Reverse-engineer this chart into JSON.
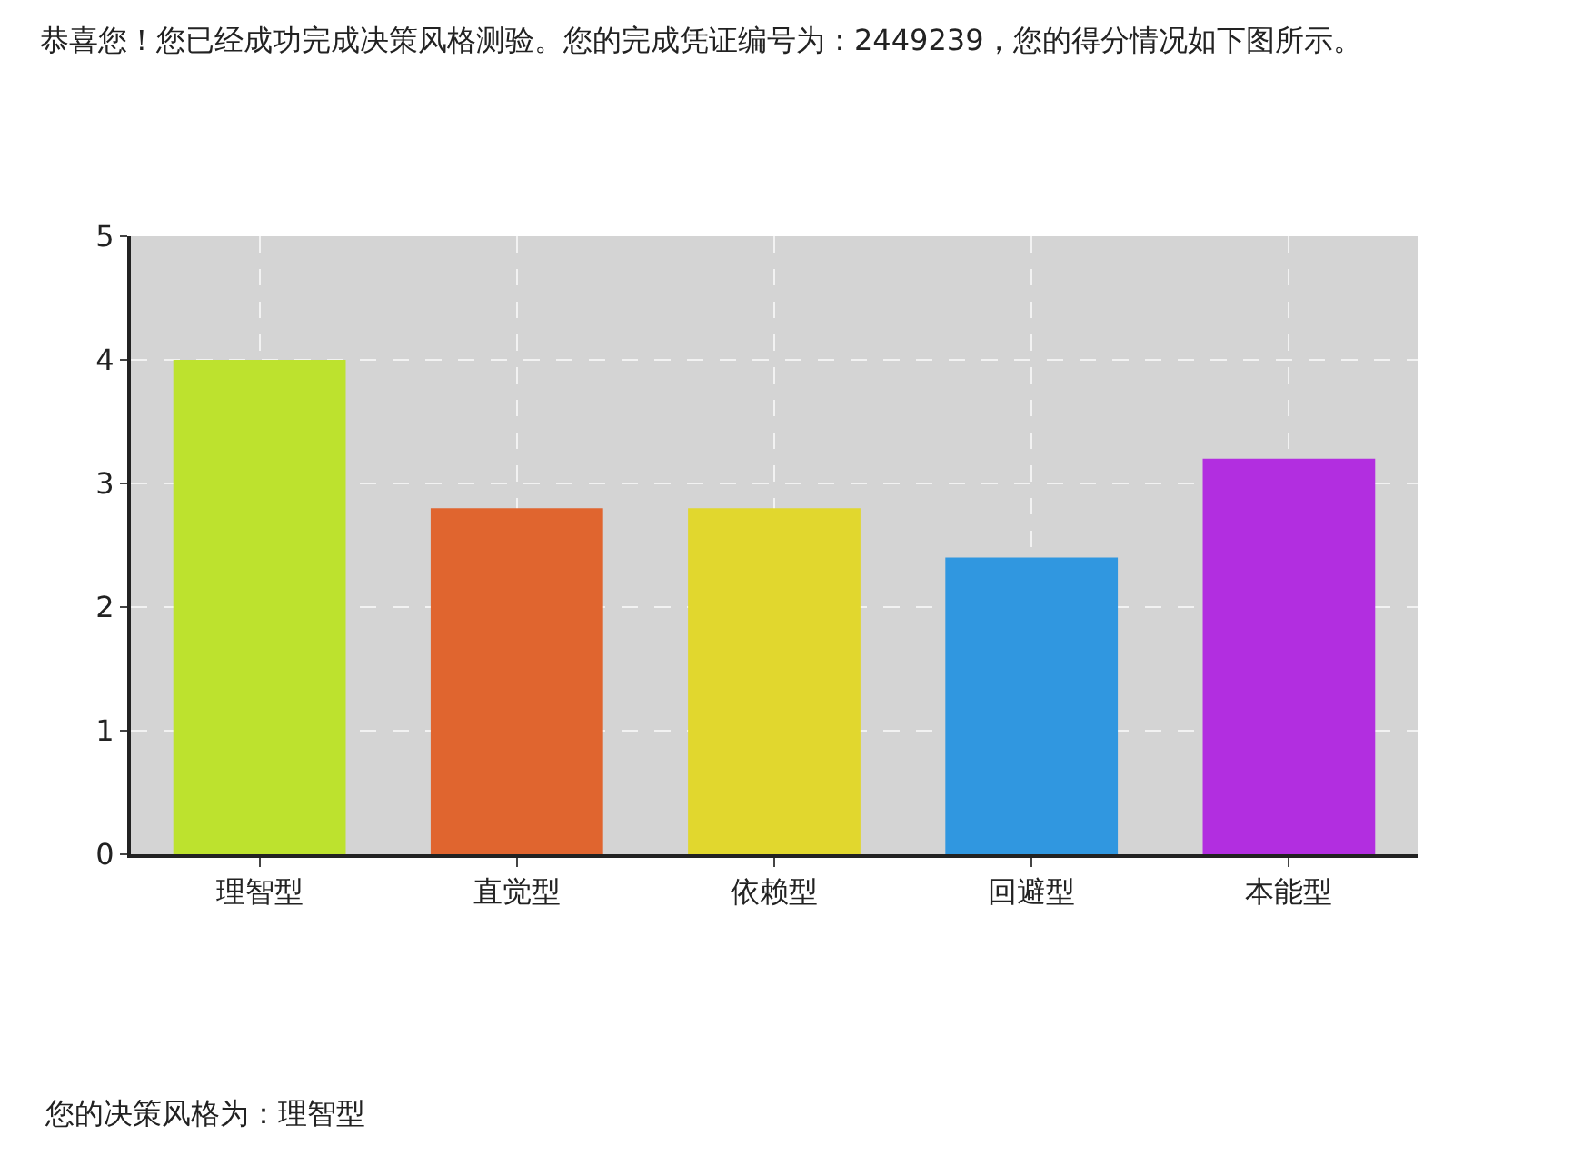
{
  "chart_data": {
    "type": "bar",
    "title": "恭喜您！您已经成功完成决策风格测验。您的完成凭证编号为：2449239，您的得分情况如下图所示。",
    "categories": [
      "理智型",
      "直觉型",
      "依赖型",
      "回避型",
      "本能型"
    ],
    "values": [
      4.0,
      2.8,
      2.8,
      2.4,
      3.2
    ],
    "colors": [
      "#bde22e",
      "#e0652f",
      "#e1d72e",
      "#3097e0",
      "#b22ee0"
    ],
    "ylim": [
      0,
      5
    ],
    "yticks": [
      0,
      1,
      2,
      3,
      4,
      5
    ],
    "grid": true,
    "annotations": [
      "您的决策风格为：理智型"
    ]
  }
}
